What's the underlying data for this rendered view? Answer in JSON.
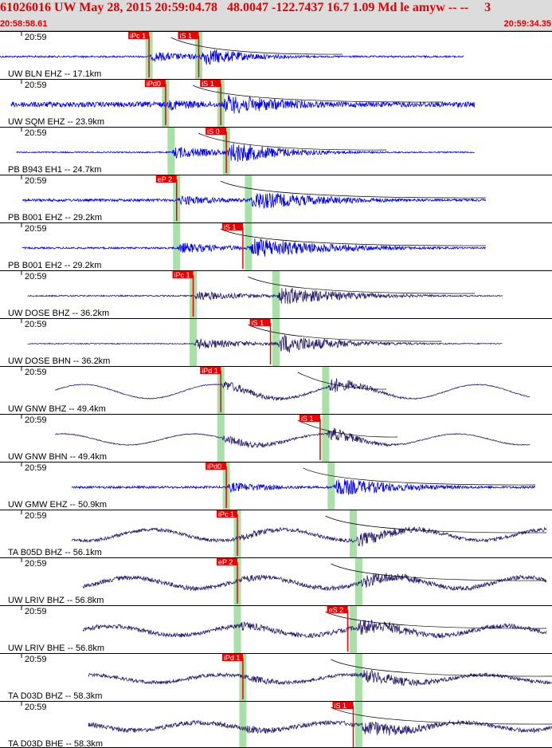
{
  "header": {
    "title": "61026016 UW May 28, 2015 20:59:04.78   48.0047 -122.7437 16.7 1.09 Md le amyw -- --     3",
    "start_time": "20:58:58.61",
    "end_time": "20:59:34.35"
  },
  "colors": {
    "header_bg": "#dcdcdc",
    "header_text": "#e00000",
    "trace_blue": "#0000ee",
    "trace_dark": "#2a1f6e",
    "pick_box": "#ee0000",
    "window_green": "#a8e0a8",
    "separator": "#000000"
  },
  "time_tick": "20:59",
  "traces": [
    {
      "label": "UW BLN EHZ -- 17.1km",
      "color": "blue",
      "start": 0,
      "end": 0.84,
      "noise": 0.04,
      "p": 0.27,
      "s": 0.36,
      "amp": 0.45,
      "freq": 2,
      "picks": [
        {
          "text": "iPc 1",
          "t": 0.27
        },
        {
          "text": "iS 1",
          "t": 0.36
        }
      ],
      "coda_end": 0.62
    },
    {
      "label": "UW SQM EHZ -- 23.9km",
      "color": "blue",
      "start": 0.02,
      "end": 0.86,
      "noise": 0.12,
      "p": 0.3,
      "s": 0.4,
      "amp": 0.5,
      "freq": 1.4,
      "picks": [
        {
          "text": "iPd0",
          "t": 0.3
        },
        {
          "text": "iS 1",
          "t": 0.4
        }
      ],
      "coda_end": 0.8
    },
    {
      "label": "PB B943 EH1 -- 24.7km",
      "color": "blue",
      "start": 0.03,
      "end": 0.86,
      "noise": 0.03,
      "p": 0.31,
      "s": 0.41,
      "amp": 0.55,
      "freq": 2,
      "picks": [
        {
          "text": "iS 0",
          "t": 0.41
        }
      ],
      "coda_end": 0.7
    },
    {
      "label": "PB B001 EHZ -- 29.2km",
      "color": "blue",
      "start": 0.04,
      "end": 0.88,
      "noise": 0.06,
      "p": 0.32,
      "s": 0.45,
      "amp": 0.45,
      "freq": 2,
      "picks": [
        {
          "text": "eP 2",
          "t": 0.32
        }
      ],
      "coda_end": 0.88
    },
    {
      "label": "PB B001 EH2 -- 29.2km",
      "color": "blue",
      "start": 0.04,
      "end": 0.88,
      "noise": 0.04,
      "p": 0.32,
      "s": 0.45,
      "amp": 0.5,
      "freq": 2,
      "picks": [
        {
          "text": "iS 1",
          "t": 0.44
        }
      ],
      "coda_end": 0.88
    },
    {
      "label": "UW DOSE BHZ -- 36.2km",
      "color": "dark",
      "start": 0.05,
      "end": 0.91,
      "noise": 0.03,
      "p": 0.35,
      "s": 0.5,
      "amp": 0.45,
      "freq": 2,
      "picks": [
        {
          "text": "iPc 1",
          "t": 0.35
        }
      ],
      "coda_end": 0.86
    },
    {
      "label": "UW DOSE BHN -- 36.2km",
      "color": "dark",
      "start": 0.05,
      "end": 0.91,
      "noise": 0.02,
      "p": 0.35,
      "s": 0.5,
      "amp": 0.5,
      "freq": 2,
      "picks": [
        {
          "text": "iS 1",
          "t": 0.49
        }
      ],
      "coda_end": 0.8
    },
    {
      "label": "UW GNW BHZ -- 49.4km",
      "color": "dark",
      "start": 0.1,
      "end": 0.96,
      "noise": 0.02,
      "p": 0.4,
      "s": 0.59,
      "amp": 0.45,
      "freq": 2,
      "long": 0.45,
      "picks": [
        {
          "text": "iPd 1",
          "t": 0.4
        }
      ],
      "coda_end": 0.7
    },
    {
      "label": "UW GNW BHN -- 49.4km",
      "color": "dark",
      "start": 0.1,
      "end": 0.96,
      "noise": 0.02,
      "p": 0.4,
      "s": 0.59,
      "amp": 0.4,
      "freq": 2,
      "long": 0.35,
      "picks": [
        {
          "text": "iS 1",
          "t": 0.58
        }
      ],
      "coda_end": 0.72
    },
    {
      "label": "UW GMW EHZ -- 50.9km",
      "color": "blue",
      "start": 0.13,
      "end": 0.97,
      "noise": 0.05,
      "p": 0.41,
      "s": 0.6,
      "amp": 0.45,
      "freq": 2,
      "picks": [
        {
          "text": "iPd0",
          "t": 0.41
        }
      ],
      "coda_end": 0.97
    },
    {
      "label": "TA B05D BHZ -- 56.1km",
      "color": "dark",
      "start": 0.13,
      "end": 0.99,
      "noise": 0.08,
      "p": 0.43,
      "s": 0.64,
      "amp": 0.35,
      "freq": 2,
      "long": 0.35,
      "picks": [
        {
          "text": "iPc 1",
          "t": 0.43
        }
      ],
      "coda_end": 0.99
    },
    {
      "label": "UW LRIV BHZ -- 56.8km",
      "color": "dark",
      "start": 0.15,
      "end": 0.99,
      "noise": 0.1,
      "p": 0.43,
      "s": 0.65,
      "amp": 0.35,
      "freq": 2,
      "long": 0.35,
      "picks": [
        {
          "text": "eP 2",
          "t": 0.43
        }
      ],
      "coda_end": 0.99
    },
    {
      "label": "UW LRIV BHE -- 56.8km",
      "color": "dark",
      "start": 0.15,
      "end": 0.99,
      "noise": 0.1,
      "p": 0.43,
      "s": 0.64,
      "amp": 0.4,
      "freq": 2,
      "long": 0.3,
      "picks": [
        {
          "text": "eS 2",
          "t": 0.63
        }
      ],
      "coda_end": 0.99
    },
    {
      "label": "TA D03D BHZ -- 58.3km",
      "color": "dark",
      "start": 0.16,
      "end": 1.0,
      "noise": 0.08,
      "p": 0.44,
      "s": 0.65,
      "amp": 0.35,
      "freq": 2,
      "long": 0.25,
      "picks": [
        {
          "text": "iPd 1",
          "t": 0.44
        }
      ],
      "coda_end": 1.0
    },
    {
      "label": "TA D03D BHE -- 58.3km",
      "color": "dark",
      "start": 0.16,
      "end": 1.0,
      "noise": 0.1,
      "p": 0.44,
      "s": 0.65,
      "amp": 0.4,
      "freq": 2,
      "long": 0.25,
      "picks": [
        {
          "text": "iS 1",
          "t": 0.64
        }
      ],
      "coda_end": 1.0
    }
  ]
}
